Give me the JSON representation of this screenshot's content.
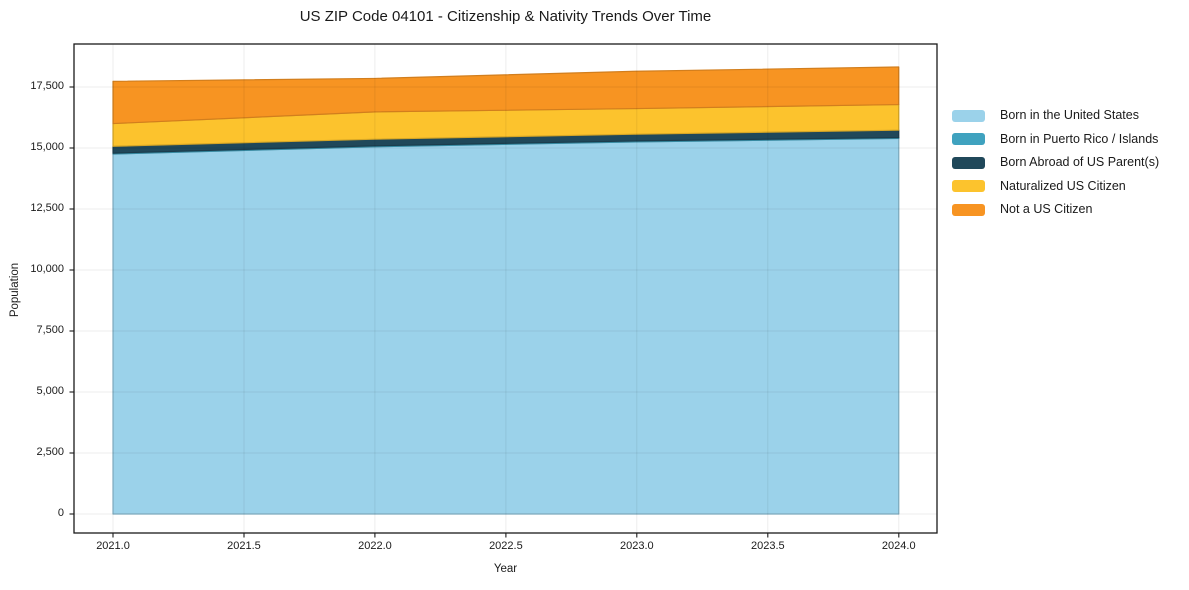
{
  "figure": {
    "background_color": "#ffffff",
    "frame_color": "#1a1a1a",
    "gridline_color": "rgba(0,0,0,0.07)"
  },
  "chart_data": {
    "type": "area",
    "stacked": true,
    "title": "US ZIP Code 04101 - Citizenship & Nativity Trends Over Time",
    "xlabel": "Year",
    "ylabel": "Population",
    "x": [
      2021,
      2022,
      2023,
      2024
    ],
    "series": [
      {
        "name": "Born in the United States",
        "color": "#9BD2EA",
        "values": [
          14750,
          15050,
          15250,
          15390
        ]
      },
      {
        "name": "Born in Puerto Rico / Islands",
        "color": "#3FA2BF",
        "values": [
          40,
          40,
          40,
          40
        ]
      },
      {
        "name": "Born Abroad of US Parent(s)",
        "color": "#20485A",
        "values": [
          280,
          270,
          275,
          300
        ]
      },
      {
        "name": "Naturalized US Citizen",
        "color": "#FCC32D",
        "values": [
          930,
          1120,
          1050,
          1050
        ]
      },
      {
        "name": "Not a US Citizen",
        "color": "#F79422",
        "values": [
          1730,
          1370,
          1530,
          1540
        ]
      }
    ],
    "stacked_totals": [
      17730,
      17850,
      18145,
      18320
    ],
    "xticks": {
      "values": [
        2021.0,
        2021.5,
        2022.0,
        2022.5,
        2023.0,
        2023.5,
        2024.0
      ],
      "labels": [
        "2021.0",
        "2021.5",
        "2022.0",
        "2022.5",
        "2023.0",
        "2023.5",
        "2024.0"
      ]
    },
    "yticks": {
      "values": [
        0,
        2500,
        5000,
        7500,
        10000,
        12500,
        15000,
        17500
      ],
      "labels": [
        "0",
        "2,500",
        "5,000",
        "7,500",
        "10,000",
        "12,500",
        "15,000",
        "17,500"
      ]
    },
    "xlim": [
      2020.851,
      2024.146
    ],
    "ylim": [
      -779,
      19261
    ],
    "grid": true,
    "legend_position": "outside-right"
  }
}
